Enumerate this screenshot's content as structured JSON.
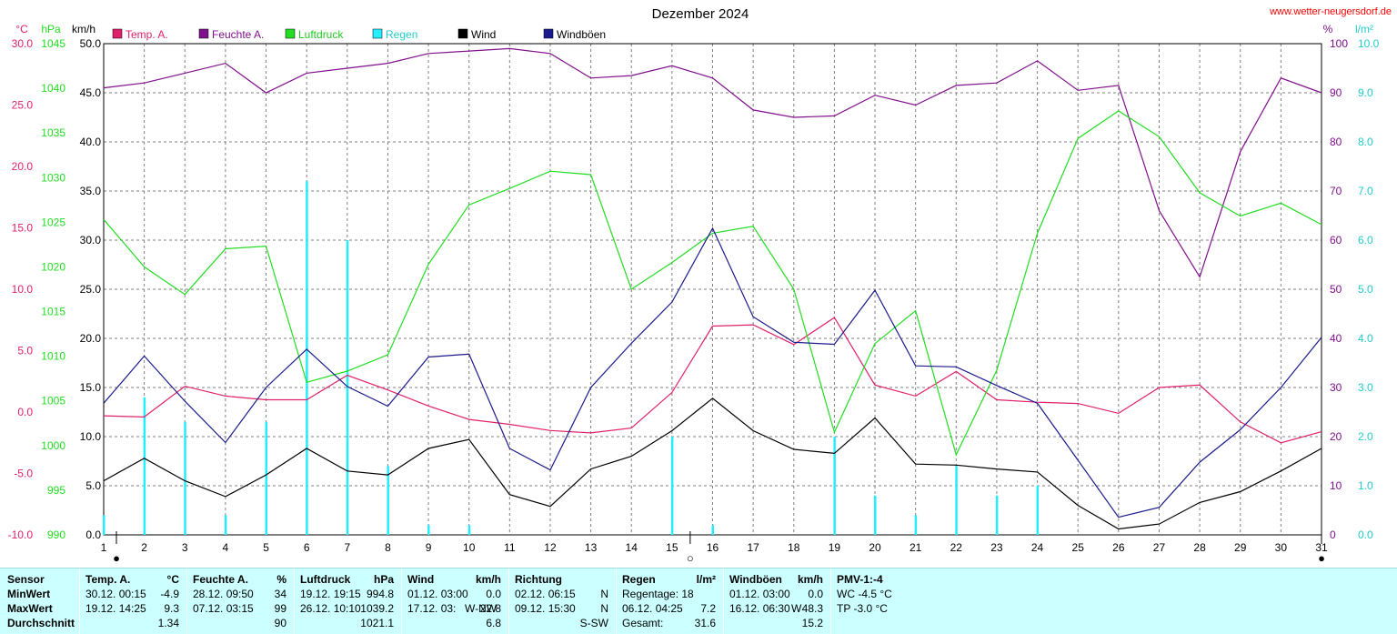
{
  "title": "Dezember 2024",
  "site": "www.wetter-neugersdorf.de",
  "colors": {
    "temp": "#e0206a",
    "hum": "#80108c",
    "pres": "#22dd22",
    "rain": "#22eeff",
    "wind": "#000000",
    "gust": "#1a1a8c",
    "grid": "#808080",
    "stats_bg": "#ccffff"
  },
  "chart_data": {
    "type": "line",
    "x": [
      1,
      2,
      3,
      4,
      5,
      6,
      7,
      8,
      9,
      10,
      11,
      12,
      13,
      14,
      15,
      16,
      17,
      18,
      19,
      20,
      21,
      22,
      23,
      24,
      25,
      26,
      27,
      28,
      29,
      30,
      31
    ],
    "xlabel": "",
    "axes": {
      "temp": {
        "label": "°C",
        "range": [
          -10,
          30
        ],
        "ticks": [
          "30.0",
          "25.0",
          "20.0",
          "15.0",
          "10.0",
          "5.0",
          "0.0",
          "-5.0",
          "-10.0"
        ]
      },
      "pres": {
        "label": "hPa",
        "range": [
          990,
          1047
        ],
        "ticks": [
          "1045",
          "1040",
          "1035",
          "1030",
          "1025",
          "1020",
          "1015",
          "1010",
          "1005",
          "1000",
          "995",
          "990"
        ]
      },
      "wind": {
        "label": "km/h",
        "range": [
          0,
          50
        ],
        "ticks": [
          "50.0",
          "45.0",
          "40.0",
          "35.0",
          "30.0",
          "25.0",
          "20.0",
          "15.0",
          "10.0",
          "5.0",
          "0.0"
        ]
      },
      "hum": {
        "label": "%",
        "range": [
          0,
          100
        ],
        "ticks": [
          "100",
          "90",
          "80",
          "70",
          "60",
          "50",
          "40",
          "30",
          "20",
          "10",
          "0"
        ]
      },
      "rain": {
        "label": "l/m²",
        "range": [
          0,
          10
        ],
        "ticks": [
          "10.0",
          "9.0",
          "8.0",
          "7.0",
          "6.0",
          "5.0",
          "4.0",
          "3.0",
          "2.0",
          "1.0",
          "0.0"
        ]
      }
    },
    "series": [
      {
        "name": "Temp. A.",
        "key": "temp",
        "axis": "temp",
        "values": [
          -0.3,
          -0.4,
          2.1,
          1.3,
          1.0,
          1.0,
          3.0,
          1.8,
          0.5,
          -0.6,
          -1.0,
          -1.5,
          -1.7,
          -1.3,
          1.6,
          7.0,
          7.1,
          5.5,
          7.7,
          2.2,
          1.3,
          3.3,
          1.0,
          0.8,
          0.7,
          -0.1,
          2.0,
          2.2,
          -0.8,
          -2.5,
          -1.6
        ]
      },
      {
        "name": "Feuchte A.",
        "key": "hum",
        "axis": "hum",
        "values": [
          91,
          92,
          94,
          96,
          90,
          94,
          95,
          96,
          98,
          98.5,
          99,
          98,
          93,
          93.5,
          95.5,
          93,
          86.5,
          85,
          85.3,
          89.5,
          87.5,
          91.5,
          92,
          96.5,
          90.5,
          91.5,
          66,
          52.5,
          78,
          93,
          90
        ]
      },
      {
        "name": "Luftdruck",
        "key": "pres",
        "axis": "pres",
        "values": [
          1026.6,
          1021.1,
          1017.9,
          1023.2,
          1023.5,
          1007.7,
          1009.0,
          1010.9,
          1021.4,
          1028.3,
          1030.2,
          1032.2,
          1031.8,
          1018.5,
          1021.6,
          1025.0,
          1025.8,
          1018.5,
          1001.9,
          1012.2,
          1016.0,
          999.3,
          1009.1,
          1025.0,
          1036.0,
          1039.2,
          1036.2,
          1029.7,
          1027.0,
          1028.5,
          1026.0
        ]
      },
      {
        "name": "Wind",
        "key": "wind",
        "axis": "wind",
        "values": [
          5.5,
          7.8,
          5.5,
          3.9,
          6.1,
          8.8,
          6.5,
          6.1,
          8.8,
          9.7,
          4.1,
          2.9,
          6.7,
          8.0,
          10.6,
          13.9,
          10.6,
          8.7,
          8.3,
          11.9,
          7.2,
          7.1,
          6.7,
          6.4,
          3.0,
          0.6,
          1.1,
          3.3,
          4.4,
          6.5,
          8.8
        ]
      },
      {
        "name": "Windböen",
        "key": "gust",
        "axis": "wind",
        "values": [
          13.4,
          18.2,
          13.6,
          9.4,
          15.0,
          18.9,
          15.1,
          13.1,
          18.1,
          18.4,
          8.8,
          6.6,
          15.0,
          19.5,
          23.7,
          31.2,
          22.2,
          19.6,
          19.4,
          24.9,
          17.2,
          17.1,
          15.2,
          13.4,
          7.6,
          1.8,
          2.8,
          7.4,
          10.7,
          15.0,
          20.1
        ]
      },
      {
        "name": "Regen",
        "key": "rain",
        "axis": "rain",
        "type": "bar",
        "values": [
          0.4,
          2.8,
          2.3,
          0.4,
          2.3,
          7.2,
          6.0,
          1.4,
          0.2,
          0.2,
          0,
          0,
          0,
          0,
          2.0,
          0.2,
          0,
          0,
          2.0,
          0.8,
          0.4,
          1.4,
          0.8,
          1.0,
          0,
          0,
          0,
          0,
          0,
          0,
          0
        ]
      }
    ],
    "moon": [
      {
        "day": 1,
        "phase": "new",
        "symbol": "●"
      },
      {
        "day": 15,
        "phase": "full",
        "symbol": "○"
      },
      {
        "day": 31,
        "phase": "new",
        "symbol": "●"
      }
    ],
    "legend_position": "top",
    "grid": true
  },
  "stats": {
    "row_labels": {
      "sensor": "Sensor",
      "min": "MinWert",
      "max": "MaxWert",
      "avg": "Durchschnitt"
    },
    "temp": {
      "title": "Temp. A.",
      "unit": "°C",
      "min_ts": "30.12.  00:15",
      "min_val": "-4.9",
      "max_ts": "19.12.  14:25",
      "max_val": "9.3",
      "avg": "1.34"
    },
    "hum": {
      "title": "Feuchte A.",
      "unit": "%",
      "min_ts": "28.12.  09:50",
      "min_val": "34",
      "max_ts": "07.12.  03:15",
      "max_val": "99",
      "avg": "90"
    },
    "pres": {
      "title": "Luftdruck",
      "unit": "hPa",
      "min_ts": "19.12.  19:15",
      "min_val": "994.8",
      "max_ts": "26.12.  10:10",
      "max_val": "1039.2",
      "avg": "1021.1"
    },
    "wind": {
      "title": "Wind",
      "unit": "km/h",
      "min_ts": "01.12.  03:00",
      "min_val": "0.0",
      "max_ts": "17.12.  03:",
      "max_dir": "W-NW",
      "max_val": "22.8",
      "avg": "6.8"
    },
    "dir": {
      "title": "Richtung",
      "min_ts": "02.12.  06:15",
      "min_val": "N",
      "max_ts": "09.12.  15:30",
      "max_val": "N",
      "avg": "S-SW"
    },
    "rain": {
      "title": "Regen",
      "unit": "l/m²",
      "days": "Regentage: 18",
      "max_ts": "06.12.  04:25",
      "max_val": "7.2",
      "total_label": "Gesamt:",
      "total": "31.6"
    },
    "gust": {
      "title": "Windböen",
      "unit": "km/h",
      "min_ts": "01.12.  03:00",
      "min_val": "0.0",
      "max_ts": "16.12.  06:30",
      "max_dir": "W",
      "max_val": "48.3",
      "avg": "15.2"
    },
    "pmv": {
      "title": "PMV-1:-4",
      "wc": "WC -4.5 °C",
      "tp": "TP -3.0 °C"
    }
  }
}
